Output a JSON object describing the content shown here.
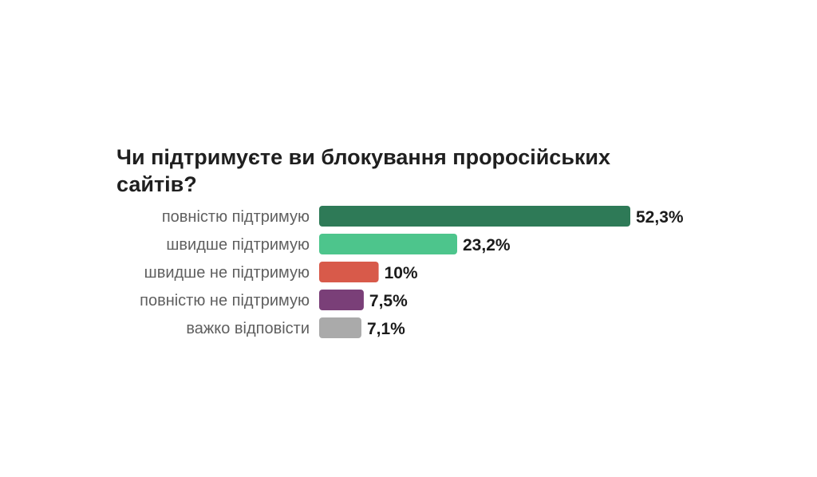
{
  "chart_data": {
    "type": "bar",
    "orientation": "horizontal",
    "title": "Чи підтримуєте ви блокування проросійських сайтів?",
    "categories": [
      "повністю підтримую",
      "швидше підтримую",
      "швидше не підтримую",
      "повністю не підтримую",
      "важко відповісти"
    ],
    "values": [
      52.3,
      23.2,
      10,
      7.5,
      7.1
    ],
    "value_labels": [
      "52,3%",
      "23,2%",
      "10%",
      "7,5%",
      "7,1%"
    ],
    "colors": [
      "#2e7a57",
      "#4dc58c",
      "#d85a4a",
      "#7a3f78",
      "#aaaaaa"
    ],
    "unit": "%",
    "grid": false,
    "legend": "none"
  }
}
